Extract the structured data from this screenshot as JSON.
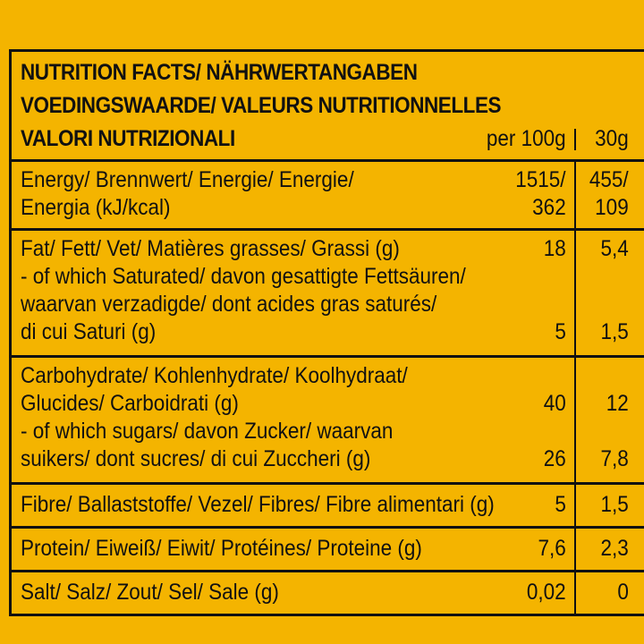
{
  "header": {
    "lines": [
      "NUTRITION FACTS/ NÄHRWERTANGABEN",
      "VOEDINGSWAARDE/ VALEURS NUTRITIONNELLES",
      "VALORI NUTRIZIONALI"
    ],
    "per100g": "per 100g",
    "per30g": "30g"
  },
  "rows": [
    {
      "lines": [
        {
          "text": "Energy/ Brennwert/ Energie/ Energie/",
          "per100g": "1515/",
          "per30g": "455/"
        },
        {
          "text": "Energia (kJ/kcal)",
          "per100g": "362",
          "per30g": "109"
        }
      ]
    },
    {
      "lines": [
        {
          "text": "Fat/ Fett/ Vet/ Matières grasses/ Grassi (g)",
          "per100g": "18",
          "per30g": "5,4"
        },
        {
          "text": "- of which Saturated/ davon gesattigte Fettsäuren/"
        },
        {
          "text": "waarvan verzadigde/ dont acides gras saturés/"
        },
        {
          "text": "di cui Saturi (g)",
          "per100g": "5",
          "per30g": "1,5"
        }
      ]
    },
    {
      "lines": [
        {
          "text": "Carbohydrate/ Kohlenhydrate/ Koolhydraat/"
        },
        {
          "text": "Glucides/ Carboidrati (g)",
          "per100g": "40",
          "per30g": "12"
        },
        {
          "text": "- of which sugars/ davon Zucker/ waarvan"
        },
        {
          "text": "suikers/ dont sucres/ di cui Zuccheri (g)",
          "per100g": "26",
          "per30g": "7,8"
        }
      ]
    },
    {
      "lines": [
        {
          "text": "Fibre/ Ballaststoffe/ Vezel/ Fibres/ Fibre alimentari (g)",
          "per100g": "5",
          "per30g": "1,5"
        }
      ]
    },
    {
      "lines": [
        {
          "text": "Protein/ Eiweiß/ Eiwit/ Protéines/ Proteine (g)",
          "per100g": "7,6",
          "per30g": "2,3"
        }
      ]
    },
    {
      "lines": [
        {
          "text": "Salt/ Salz/ Zout/ Sel/ Sale (g)",
          "per100g": "0,02",
          "per30g": "0"
        }
      ]
    }
  ]
}
